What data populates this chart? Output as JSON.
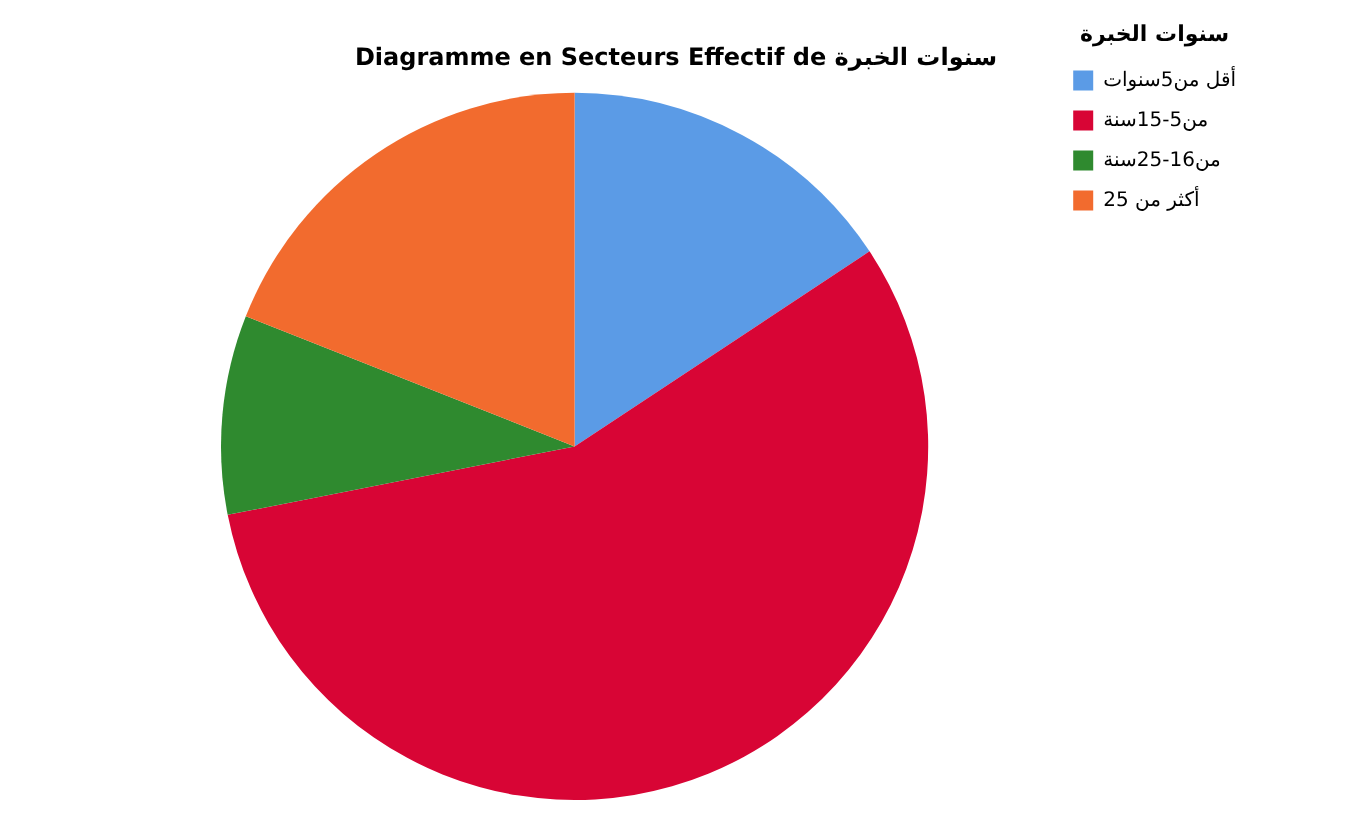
{
  "chart_data": {
    "type": "pie",
    "title": "Diagramme en Secteurs Effectif de سنوات الخبرة",
    "legend_title": "سنوات الخبرة",
    "legend": "top right",
    "categories": [
      "أقل من5سنوات",
      "من5-15سنة",
      "من16-25سنة",
      "أكثر من 25"
    ],
    "values": [
      15.7,
      56.2,
      9.1,
      19.0
    ],
    "colors": [
      "#5b9be6",
      "#d80535",
      "#2f8a2f",
      "#f26b2e"
    ]
  }
}
